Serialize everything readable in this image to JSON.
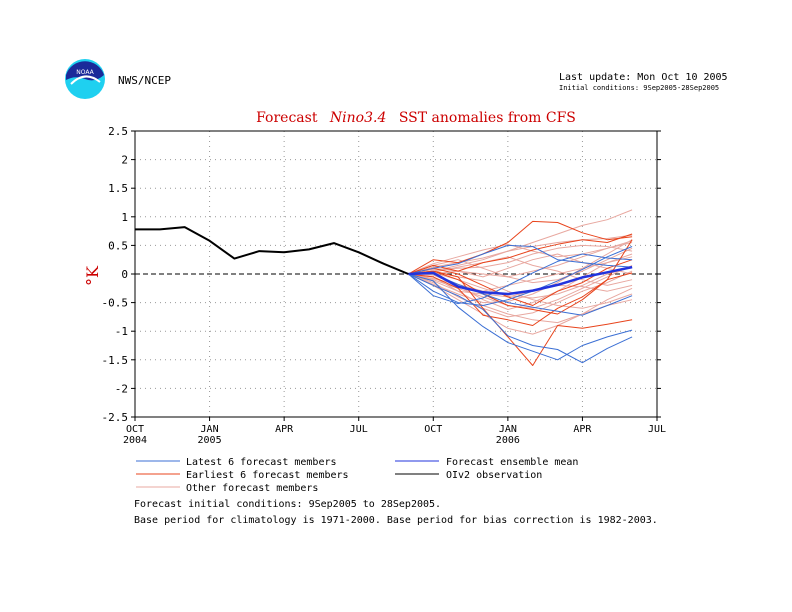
{
  "header": {
    "agency": "NWS/NCEP",
    "logo_text": "NOAA",
    "last_update": "Last update: Mon Oct 10 2005",
    "initial_conditions": "Initial conditions: 9Sep2005-28Sep2005"
  },
  "chart_data": {
    "type": "line",
    "title_prefix": "Forecast",
    "title_italic": "Nino3.4",
    "title_suffix": "SST anomalies from CFS",
    "ylabel": "°K",
    "ylim": [
      -2.5,
      2.5
    ],
    "yticks": [
      2.5,
      2,
      1.5,
      1,
      0.5,
      0,
      -0.5,
      -1,
      -1.5,
      -2,
      -2.5
    ],
    "ytick_labels": [
      "2.5",
      "2",
      "1.5",
      "1",
      "0.5",
      "0",
      "-0.5",
      "-1",
      "-1.5",
      "-2",
      "-2.5"
    ],
    "xlim": [
      0,
      21
    ],
    "xticks": [
      {
        "x": 0,
        "label": "OCT",
        "year": "2004"
      },
      {
        "x": 3,
        "label": "JAN",
        "year": "2005"
      },
      {
        "x": 6,
        "label": "APR",
        "year": ""
      },
      {
        "x": 9,
        "label": "JUL",
        "year": ""
      },
      {
        "x": 12,
        "label": "OCT",
        "year": ""
      },
      {
        "x": 15,
        "label": "JAN",
        "year": "2006"
      },
      {
        "x": 18,
        "label": "APR",
        "year": ""
      },
      {
        "x": 21,
        "label": "JUL",
        "year": ""
      }
    ],
    "grid": true,
    "zero_line": true,
    "observation": {
      "name": "OIv2 observation",
      "color": "#000000",
      "x": [
        0,
        1,
        2,
        3,
        4,
        5,
        6,
        7,
        8,
        9,
        10,
        11
      ],
      "y": [
        0.78,
        0.78,
        0.82,
        0.58,
        0.27,
        0.4,
        0.38,
        0.43,
        0.54,
        0.38,
        0.18,
        0.0
      ]
    },
    "ensemble_mean": {
      "name": "Forecast ensemble mean",
      "color": "#2233dd",
      "x": [
        11,
        12,
        13,
        14,
        15,
        16,
        17,
        18,
        19,
        20
      ],
      "y": [
        0.0,
        0.02,
        -0.22,
        -0.32,
        -0.35,
        -0.29,
        -0.19,
        -0.06,
        0.03,
        0.12
      ]
    },
    "member_x": [
      11,
      12,
      13,
      14,
      15,
      16,
      17,
      18,
      19,
      20
    ],
    "latest_members": {
      "name": "Latest 6 forecast members",
      "color": "#3b6fd4",
      "series": [
        [
          0.0,
          -0.38,
          -0.52,
          -0.42,
          -0.2,
          0.02,
          0.22,
          0.35,
          0.28,
          0.25
        ],
        [
          0.0,
          -0.12,
          -0.58,
          -0.92,
          -1.2,
          -1.35,
          -1.5,
          -1.25,
          -1.1,
          -0.98
        ],
        [
          0.0,
          0.1,
          0.18,
          0.35,
          0.5,
          0.48,
          0.25,
          0.2,
          0.15,
          0.12
        ],
        [
          0.0,
          -0.2,
          -0.38,
          -0.62,
          -1.08,
          -1.25,
          -1.32,
          -1.55,
          -1.3,
          -1.1
        ],
        [
          0.0,
          0.0,
          -0.18,
          -0.35,
          -0.5,
          -0.58,
          -0.65,
          -0.72,
          -0.55,
          -0.38
        ],
        [
          0.0,
          -0.3,
          -0.5,
          -0.55,
          -0.45,
          -0.3,
          -0.12,
          0.08,
          0.3,
          0.48
        ]
      ]
    },
    "earliest_members": {
      "name": "Earliest 6 forecast members",
      "color": "#e8441c",
      "series": [
        [
          0.0,
          0.25,
          0.2,
          0.35,
          0.55,
          0.92,
          0.9,
          0.72,
          0.6,
          0.65
        ],
        [
          0.0,
          0.05,
          -0.05,
          -0.6,
          -1.1,
          -1.6,
          -0.9,
          -0.95,
          -0.88,
          -0.8
        ],
        [
          0.0,
          -0.05,
          -0.25,
          -0.72,
          -0.8,
          -0.9,
          -0.6,
          -0.4,
          -0.1,
          0.6
        ],
        [
          0.0,
          0.15,
          0.05,
          0.2,
          0.28,
          0.42,
          0.52,
          0.6,
          0.55,
          0.7
        ],
        [
          0.0,
          0.1,
          0.0,
          -0.2,
          -0.4,
          -0.55,
          -0.3,
          -0.15,
          0.1,
          0.25
        ],
        [
          0.0,
          0.05,
          -0.1,
          -0.35,
          -0.55,
          -0.62,
          -0.7,
          -0.45,
          -0.1,
          0.02
        ]
      ]
    },
    "other_members": {
      "name": "Other forecast members",
      "color": "#e8a8a0",
      "series": [
        [
          0.0,
          0.05,
          0.15,
          0.25,
          0.4,
          0.55,
          0.7,
          0.85,
          0.95,
          1.12
        ],
        [
          0.0,
          -0.1,
          -0.25,
          -0.4,
          -0.55,
          -0.6,
          -0.45,
          -0.25,
          -0.05,
          0.15
        ],
        [
          0.0,
          0.12,
          0.2,
          0.28,
          0.4,
          0.48,
          0.55,
          0.6,
          0.62,
          0.68
        ],
        [
          0.0,
          -0.05,
          -0.3,
          -0.55,
          -0.7,
          -0.8,
          -0.85,
          -0.7,
          -0.55,
          -0.45
        ],
        [
          0.0,
          0.02,
          -0.1,
          -0.25,
          -0.38,
          -0.42,
          -0.35,
          -0.2,
          0.0,
          0.12
        ],
        [
          0.0,
          0.08,
          0.1,
          0.12,
          0.2,
          0.35,
          0.45,
          0.5,
          0.48,
          0.4
        ],
        [
          0.0,
          -0.15,
          -0.4,
          -0.6,
          -0.75,
          -0.68,
          -0.5,
          -0.3,
          -0.15,
          0.05
        ],
        [
          0.0,
          0.0,
          0.05,
          0.0,
          -0.05,
          0.05,
          0.15,
          0.3,
          0.45,
          0.58
        ],
        [
          0.0,
          -0.08,
          -0.18,
          -0.3,
          -0.2,
          -0.1,
          0.0,
          0.1,
          0.2,
          0.3
        ],
        [
          0.0,
          0.15,
          0.25,
          0.1,
          -0.05,
          -0.15,
          -0.1,
          0.05,
          0.25,
          0.45
        ],
        [
          0.0,
          -0.2,
          -0.45,
          -0.7,
          -0.95,
          -1.05,
          -0.9,
          -0.7,
          -0.45,
          -0.25
        ],
        [
          0.0,
          0.05,
          -0.05,
          -0.12,
          -0.3,
          -0.45,
          -0.55,
          -0.6,
          -0.5,
          -0.35
        ],
        [
          0.0,
          0.18,
          0.3,
          0.42,
          0.52,
          0.4,
          0.3,
          0.35,
          0.45,
          0.55
        ],
        [
          0.0,
          -0.02,
          -0.2,
          -0.45,
          -0.62,
          -0.5,
          -0.3,
          -0.05,
          0.2,
          0.35
        ],
        [
          0.0,
          0.1,
          0.05,
          -0.05,
          0.1,
          0.25,
          0.35,
          0.2,
          0.1,
          0.0
        ],
        [
          0.0,
          -0.12,
          -0.3,
          -0.35,
          -0.4,
          -0.3,
          -0.2,
          -0.22,
          -0.3,
          -0.2
        ],
        [
          0.0,
          0.03,
          0.12,
          0.2,
          0.3,
          0.15,
          0.05,
          -0.1,
          -0.2,
          -0.1
        ],
        [
          0.0,
          -0.18,
          -0.35,
          -0.5,
          -0.48,
          -0.35,
          -0.15,
          0.1,
          0.35,
          0.6
        ]
      ]
    }
  },
  "footer": {
    "line1": "Forecast initial conditions: 9Sep2005 to 28Sep2005.",
    "line2": "Base period for climatology is 1971-2000. Base period for bias correction is 1982-2003."
  }
}
